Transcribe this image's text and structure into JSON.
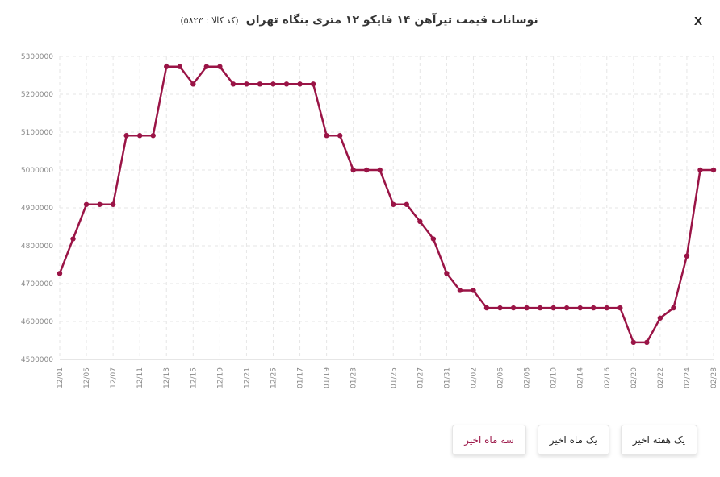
{
  "header": {
    "title": "نوسانات قیمت تیرآهن  ۱۴ فایکو ۱۲ متری بنگاه تهران",
    "code": "(کد کالا : ۵۸۲۳)",
    "close_label": "X"
  },
  "colors": {
    "line": "#9a1446",
    "grid": "#e6e6e6",
    "axis": "#cccccc",
    "active_button": "#9a1446"
  },
  "buttons": [
    {
      "label": "یک هفته اخیر",
      "active": false
    },
    {
      "label": "یک ماه اخیر",
      "active": false
    },
    {
      "label": "سه ماه اخیر",
      "active": true
    }
  ],
  "chart_data": {
    "type": "line",
    "ylim": [
      4500000,
      5300000
    ],
    "y_ticks": [
      4500000,
      4600000,
      4700000,
      4800000,
      4900000,
      5000000,
      5100000,
      5200000,
      5300000
    ],
    "grid": true,
    "x_tick_labels": [
      "12/01",
      "12/05",
      "12/07",
      "12/11",
      "12/13",
      "12/15",
      "12/19",
      "12/21",
      "12/25",
      "01/17",
      "01/19",
      "01/23",
      "01/25",
      "01/27",
      "01/31",
      "02/02",
      "02/06",
      "02/08",
      "02/10",
      "02/14",
      "02/16",
      "02/20",
      "02/22",
      "02/24",
      "02/28"
    ],
    "series": [
      {
        "values": [
          4727000,
          4818000,
          4909000,
          4909000,
          4909000,
          5091000,
          5091000,
          5091000,
          5273000,
          5273000,
          5227000,
          5273000,
          5273000,
          5227000,
          5227000,
          5227000,
          5227000,
          5227000,
          5227000,
          5227000,
          5091000,
          5091000,
          5000000,
          5000000,
          5000000,
          4909000,
          4909000,
          4864000,
          4818000,
          4727000,
          4682000,
          4682000,
          4636000,
          4636000,
          4636000,
          4636000,
          4636000,
          4636000,
          4636000,
          4636000,
          4636000,
          4636000,
          4636000,
          4545000,
          4545000,
          4609000,
          4636000,
          4773000,
          5000000,
          5000000
        ]
      }
    ]
  }
}
